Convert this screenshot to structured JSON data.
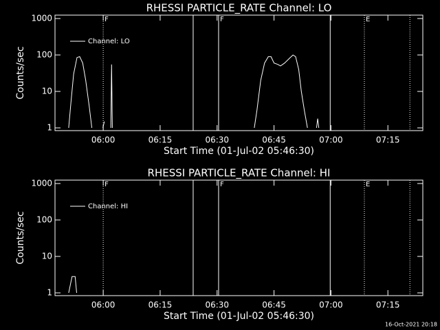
{
  "chart_data": [
    {
      "type": "line",
      "title": "RHESSI PARTICLE_RATE Channel: LO",
      "x_label": "Start Time (01-Jul-02 05:46:30)",
      "y_label": "Counts/sec",
      "log_y": true,
      "legend": "upper left",
      "xlim": [
        347.3,
        444.2
      ],
      "xticks": [
        {
          "value": 360,
          "label": "06:00"
        },
        {
          "value": 375,
          "label": "06:15"
        },
        {
          "value": 390,
          "label": "06:30"
        },
        {
          "value": 405,
          "label": "06:45"
        },
        {
          "value": 420,
          "label": "07:00"
        },
        {
          "value": 435,
          "label": "07:15"
        }
      ],
      "ylim": [
        0.84,
        1240
      ],
      "yticks": [
        1,
        10,
        100,
        1000
      ],
      "x": [
        350.9,
        351.5,
        352.2,
        353.1,
        353.8,
        354.6,
        355.4,
        356.3,
        357.0,
        358.0,
        359.9,
        360.3,
        361.0,
        362.0,
        362.2,
        362.4,
        380.0,
        399.8,
        400.5,
        401.5,
        402.5,
        403.5,
        404.2,
        405.0,
        406.0,
        406.7,
        407.8,
        409.0,
        410.0,
        410.7,
        411.5,
        412.2,
        413.0,
        413.8,
        415.0,
        416.2,
        416.5,
        416.8
      ],
      "series": [
        {
          "name": "Channel: LO",
          "color": "#ffffff",
          "values": [
            1,
            5,
            30,
            85,
            90,
            60,
            20,
            4,
            1,
            null,
            1,
            1.5,
            null,
            1,
            55,
            1,
            null,
            1,
            3,
            20,
            60,
            90,
            90,
            60,
            55,
            50,
            60,
            80,
            100,
            90,
            40,
            10,
            3,
            1,
            null,
            1,
            1.8,
            1
          ]
        }
      ],
      "markers": [
        {
          "x": 360.0,
          "style": "dotted",
          "label": "F"
        },
        {
          "x": 383.7,
          "style": "solid"
        },
        {
          "x": 390.4,
          "style": "solid",
          "label": "F"
        },
        {
          "x": 419.8,
          "style": "solid"
        },
        {
          "x": 428.8,
          "style": "dotted",
          "label": "E"
        },
        {
          "x": 440.8,
          "style": "dotted"
        }
      ]
    },
    {
      "type": "line",
      "title": "RHESSI PARTICLE_RATE Channel: HI",
      "x_label": "Start Time (01-Jul-02 05:46:30)",
      "y_label": "Counts/sec",
      "log_y": true,
      "legend": "upper left",
      "xlim": [
        347.3,
        444.2
      ],
      "xticks": [
        {
          "value": 360,
          "label": "06:00"
        },
        {
          "value": 375,
          "label": "06:15"
        },
        {
          "value": 390,
          "label": "06:30"
        },
        {
          "value": 405,
          "label": "06:45"
        },
        {
          "value": 420,
          "label": "07:00"
        },
        {
          "value": 435,
          "label": "07:15"
        }
      ],
      "ylim": [
        0.84,
        1240
      ],
      "yticks": [
        1,
        10,
        100,
        1000
      ],
      "x": [
        350.9,
        351.8,
        352.6,
        353.0
      ],
      "series": [
        {
          "name": "Channel: HI",
          "color": "#ffffff",
          "values": [
            1,
            2.8,
            2.8,
            1
          ]
        }
      ],
      "markers": [
        {
          "x": 360.0,
          "style": "dotted",
          "label": "F"
        },
        {
          "x": 383.7,
          "style": "solid"
        },
        {
          "x": 390.4,
          "style": "solid",
          "label": "F"
        },
        {
          "x": 419.8,
          "style": "solid"
        },
        {
          "x": 428.8,
          "style": "dotted",
          "label": "E"
        },
        {
          "x": 440.8,
          "style": "dotted"
        }
      ]
    }
  ],
  "footer": "16-Oct-2021 20:18"
}
